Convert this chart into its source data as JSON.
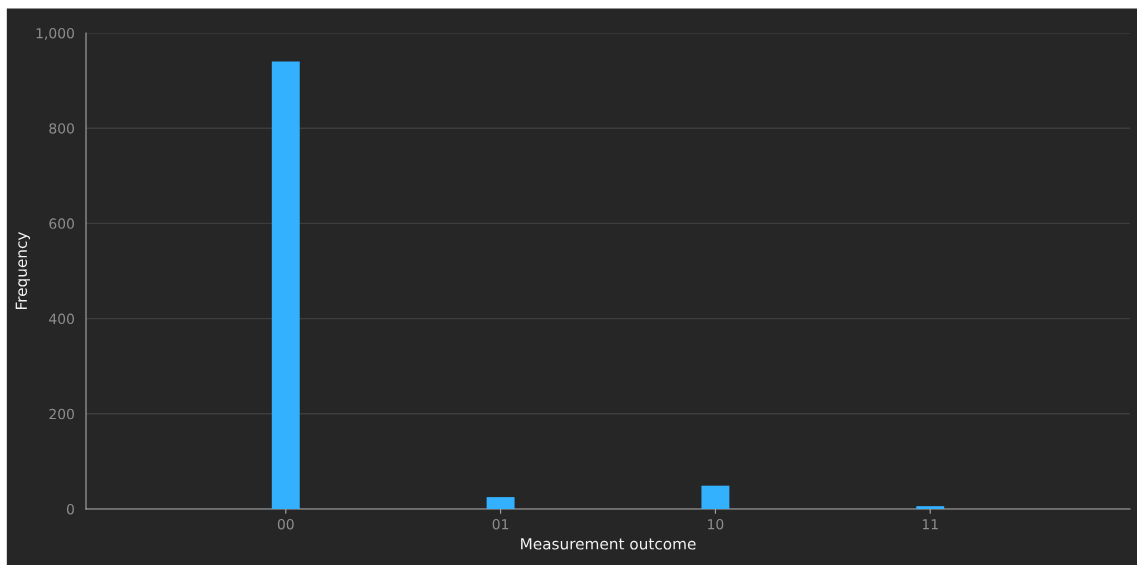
{
  "chart_data": {
    "type": "bar",
    "xlabel": "Measurement outcome",
    "ylabel": "Frequency",
    "categories": [
      "00",
      "01",
      "10",
      "11"
    ],
    "values": [
      940,
      25,
      49,
      6
    ],
    "color": "#33b1ff",
    "ylim": [
      0,
      1000
    ],
    "yticks": [
      0,
      200,
      400,
      600,
      800,
      {
        "value": 1000,
        "label": "1,000"
      }
    ],
    "grid": "y",
    "legend": false
  }
}
